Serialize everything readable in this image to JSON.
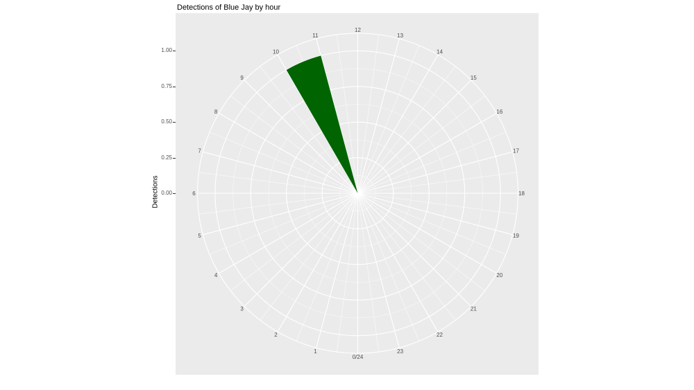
{
  "title": "Detections of Blue Jay by hour",
  "y_axis": {
    "title": "Detections",
    "ticks": [
      {
        "label": "0.00",
        "value": 0
      },
      {
        "label": "0.25",
        "value": 0.25
      },
      {
        "label": "0.50",
        "value": 0.5
      },
      {
        "label": "0.75",
        "value": 0.75
      },
      {
        "label": "1.00",
        "value": 1
      }
    ]
  },
  "theta_axis": {
    "labels": [
      {
        "text": "1",
        "hour": 1
      },
      {
        "text": "2",
        "hour": 2
      },
      {
        "text": "3",
        "hour": 3
      },
      {
        "text": "4",
        "hour": 4
      },
      {
        "text": "5",
        "hour": 5
      },
      {
        "text": "6",
        "hour": 6
      },
      {
        "text": "7",
        "hour": 7
      },
      {
        "text": "8",
        "hour": 8
      },
      {
        "text": "9",
        "hour": 9
      },
      {
        "text": "10",
        "hour": 10
      },
      {
        "text": "11",
        "hour": 11
      },
      {
        "text": "12",
        "hour": 12
      },
      {
        "text": "13",
        "hour": 13
      },
      {
        "text": "14",
        "hour": 14
      },
      {
        "text": "15",
        "hour": 15
      },
      {
        "text": "16",
        "hour": 16
      },
      {
        "text": "17",
        "hour": 17
      },
      {
        "text": "18",
        "hour": 18
      },
      {
        "text": "19",
        "hour": 19
      },
      {
        "text": "20",
        "hour": 20
      },
      {
        "text": "21",
        "hour": 21
      },
      {
        "text": "22",
        "hour": 22
      },
      {
        "text": "23",
        "hour": 23
      },
      {
        "text": "0/24",
        "hour": 24
      }
    ]
  },
  "chart_data": {
    "type": "bar",
    "coord": "polar",
    "title": "Detections of Blue Jay by hour",
    "xlabel": "",
    "ylabel": "Detections",
    "categories": [
      0,
      1,
      2,
      3,
      4,
      5,
      6,
      7,
      8,
      9,
      10,
      11,
      12,
      13,
      14,
      15,
      16,
      17,
      18,
      19,
      20,
      21,
      22,
      23
    ],
    "values": [
      0,
      0,
      0,
      0,
      0,
      0,
      0,
      0,
      0,
      0,
      1,
      0,
      0,
      0,
      0,
      0,
      0,
      0,
      0,
      0,
      0,
      0,
      0,
      0
    ],
    "ylim": [
      0,
      1
    ],
    "theta_range": [
      0,
      24
    ],
    "theta_direction": "clockwise",
    "theta_zero_position": "bottom",
    "grid": true,
    "legend": "none",
    "bar_span_hours": [
      10,
      11
    ],
    "bar_value": 1.0
  },
  "style": {
    "panel_bg": "#EBEBEB",
    "grid_color": "#FFFFFF",
    "bar_fill": "#006400",
    "tick_text_color": "#4D4D4D",
    "title_color": "#000000"
  }
}
